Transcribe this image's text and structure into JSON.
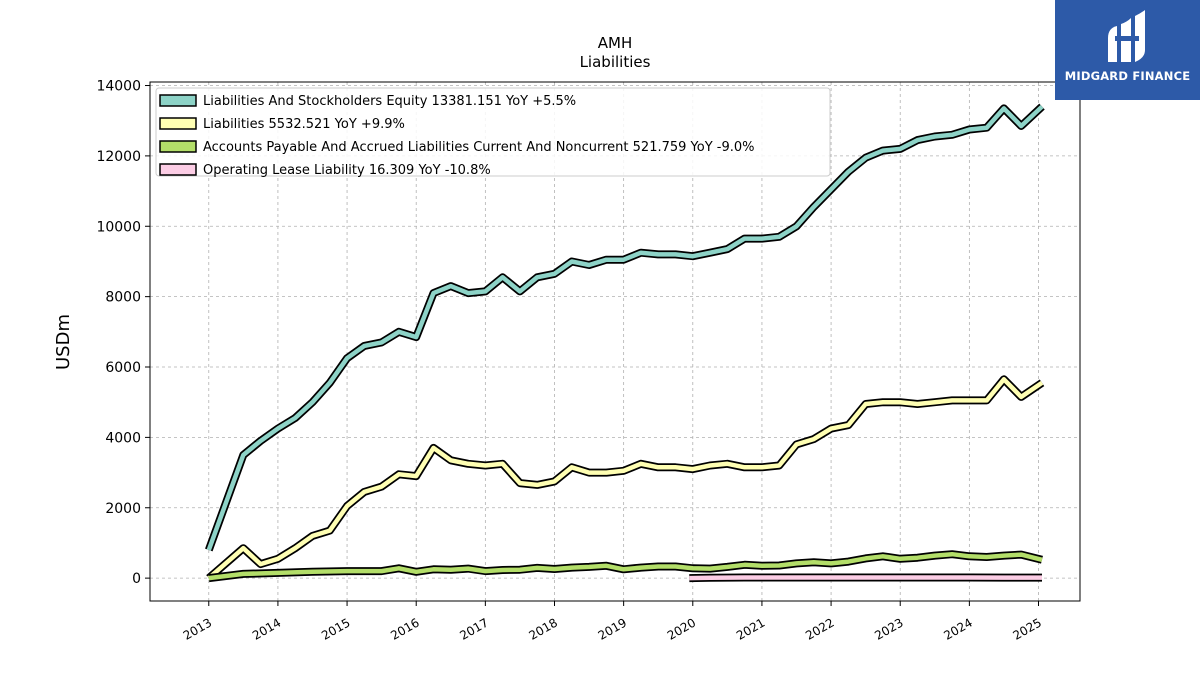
{
  "chart_data": {
    "type": "line",
    "title": "AMH",
    "subtitle": "Liabilities",
    "ylabel": "USDm",
    "xlabel": "",
    "ylim": [
      -650,
      14100
    ],
    "xlim": [
      2012.15,
      2025.6
    ],
    "yticks": [
      0,
      2000,
      4000,
      6000,
      8000,
      10000,
      12000,
      14000
    ],
    "xticks": [
      "2013",
      "2014",
      "2015",
      "2016",
      "2017",
      "2018",
      "2019",
      "2020",
      "2021",
      "2022",
      "2023",
      "2024",
      "2025"
    ],
    "grid": true,
    "legend_position": "top-left",
    "series": [
      {
        "name": "Liabilities And Stockholders Equity",
        "legend": "Liabilities And Stockholders Equity  13381.151 YoY +5.5%",
        "color": "#8dd3c7",
        "points": [
          [
            2013.0,
            800
          ],
          [
            2013.5,
            3500
          ],
          [
            2013.75,
            3900
          ],
          [
            2014.0,
            4250
          ],
          [
            2014.25,
            4550
          ],
          [
            2014.5,
            5000
          ],
          [
            2014.75,
            5550
          ],
          [
            2015.0,
            6250
          ],
          [
            2015.25,
            6600
          ],
          [
            2015.5,
            6700
          ],
          [
            2015.75,
            7000
          ],
          [
            2016.0,
            6850
          ],
          [
            2016.25,
            8100
          ],
          [
            2016.5,
            8300
          ],
          [
            2016.75,
            8100
          ],
          [
            2017.0,
            8150
          ],
          [
            2017.25,
            8550
          ],
          [
            2017.5,
            8150
          ],
          [
            2017.75,
            8550
          ],
          [
            2018.0,
            8650
          ],
          [
            2018.25,
            9000
          ],
          [
            2018.5,
            8900
          ],
          [
            2018.75,
            9050
          ],
          [
            2019.0,
            9050
          ],
          [
            2019.25,
            9250
          ],
          [
            2019.5,
            9200
          ],
          [
            2019.75,
            9200
          ],
          [
            2020.0,
            9150
          ],
          [
            2020.25,
            9250
          ],
          [
            2020.5,
            9350
          ],
          [
            2020.75,
            9650
          ],
          [
            2021.0,
            9650
          ],
          [
            2021.25,
            9700
          ],
          [
            2021.5,
            10000
          ],
          [
            2021.75,
            10550
          ],
          [
            2022.0,
            11050
          ],
          [
            2022.25,
            11550
          ],
          [
            2022.5,
            11950
          ],
          [
            2022.75,
            12150
          ],
          [
            2023.0,
            12200
          ],
          [
            2023.25,
            12450
          ],
          [
            2023.5,
            12550
          ],
          [
            2023.75,
            12600
          ],
          [
            2024.0,
            12750
          ],
          [
            2024.25,
            12800
          ],
          [
            2024.5,
            13350
          ],
          [
            2024.75,
            12850
          ],
          [
            2025.05,
            13400
          ]
        ]
      },
      {
        "name": "Liabilities",
        "legend": "Liabilities  5532.521 YoY +9.9%",
        "color": "#ffffb3",
        "points": [
          [
            2013.0,
            0
          ],
          [
            2013.5,
            850
          ],
          [
            2013.75,
            400
          ],
          [
            2014.0,
            550
          ],
          [
            2014.25,
            850
          ],
          [
            2014.5,
            1200
          ],
          [
            2014.75,
            1350
          ],
          [
            2015.0,
            2050
          ],
          [
            2015.25,
            2450
          ],
          [
            2015.5,
            2600
          ],
          [
            2015.75,
            2950
          ],
          [
            2016.0,
            2900
          ],
          [
            2016.25,
            3700
          ],
          [
            2016.5,
            3350
          ],
          [
            2016.75,
            3250
          ],
          [
            2017.0,
            3200
          ],
          [
            2017.25,
            3250
          ],
          [
            2017.5,
            2700
          ],
          [
            2017.75,
            2650
          ],
          [
            2018.0,
            2750
          ],
          [
            2018.25,
            3150
          ],
          [
            2018.5,
            3000
          ],
          [
            2018.75,
            3000
          ],
          [
            2019.0,
            3050
          ],
          [
            2019.25,
            3250
          ],
          [
            2019.5,
            3150
          ],
          [
            2019.75,
            3150
          ],
          [
            2020.0,
            3100
          ],
          [
            2020.25,
            3200
          ],
          [
            2020.5,
            3250
          ],
          [
            2020.75,
            3150
          ],
          [
            2021.0,
            3150
          ],
          [
            2021.25,
            3200
          ],
          [
            2021.5,
            3800
          ],
          [
            2021.75,
            3950
          ],
          [
            2022.0,
            4250
          ],
          [
            2022.25,
            4350
          ],
          [
            2022.5,
            4950
          ],
          [
            2022.75,
            5000
          ],
          [
            2023.0,
            5000
          ],
          [
            2023.25,
            4950
          ],
          [
            2023.5,
            5000
          ],
          [
            2023.75,
            5050
          ],
          [
            2024.0,
            5050
          ],
          [
            2024.25,
            5050
          ],
          [
            2024.5,
            5650
          ],
          [
            2024.75,
            5150
          ],
          [
            2025.05,
            5550
          ]
        ]
      },
      {
        "name": "Accounts Payable And Accrued Liabilities Current And Noncurrent",
        "legend": "Accounts Payable And Accrued Liabilities Current And Noncurrent  521.759 YoY -9.0%",
        "color": "#b3de69",
        "points": [
          [
            2013.0,
            0
          ],
          [
            2013.5,
            120
          ],
          [
            2014.0,
            150
          ],
          [
            2014.5,
            180
          ],
          [
            2015.0,
            200
          ],
          [
            2015.5,
            200
          ],
          [
            2015.75,
            280
          ],
          [
            2016.0,
            180
          ],
          [
            2016.25,
            250
          ],
          [
            2016.5,
            240
          ],
          [
            2016.75,
            270
          ],
          [
            2017.0,
            200
          ],
          [
            2017.25,
            230
          ],
          [
            2017.5,
            240
          ],
          [
            2017.75,
            290
          ],
          [
            2018.0,
            260
          ],
          [
            2018.25,
            300
          ],
          [
            2018.5,
            320
          ],
          [
            2018.75,
            350
          ],
          [
            2019.0,
            250
          ],
          [
            2019.25,
            300
          ],
          [
            2019.5,
            330
          ],
          [
            2019.75,
            330
          ],
          [
            2020.0,
            280
          ],
          [
            2020.25,
            270
          ],
          [
            2020.5,
            320
          ],
          [
            2020.75,
            380
          ],
          [
            2021.0,
            350
          ],
          [
            2021.25,
            360
          ],
          [
            2021.5,
            420
          ],
          [
            2021.75,
            450
          ],
          [
            2022.0,
            420
          ],
          [
            2022.25,
            470
          ],
          [
            2022.5,
            560
          ],
          [
            2022.75,
            620
          ],
          [
            2023.0,
            550
          ],
          [
            2023.25,
            580
          ],
          [
            2023.5,
            640
          ],
          [
            2023.75,
            680
          ],
          [
            2024.0,
            620
          ],
          [
            2024.25,
            600
          ],
          [
            2024.5,
            640
          ],
          [
            2024.75,
            670
          ],
          [
            2025.05,
            520
          ]
        ]
      },
      {
        "name": "Operating Lease Liability",
        "legend": "Operating Lease Liability  16.309 YoY -10.8%",
        "color": "#fccde5",
        "points": [
          [
            2019.95,
            0
          ],
          [
            2020.25,
            10
          ],
          [
            2020.5,
            15
          ],
          [
            2020.75,
            18
          ],
          [
            2021.0,
            18
          ],
          [
            2021.5,
            18
          ],
          [
            2022.0,
            18
          ],
          [
            2022.5,
            18
          ],
          [
            2023.0,
            18
          ],
          [
            2023.5,
            17
          ],
          [
            2024.0,
            17
          ],
          [
            2024.5,
            16
          ],
          [
            2025.05,
            16
          ]
        ]
      }
    ]
  },
  "logo": {
    "text": "MIDGARD FINANCE",
    "background": "#2d5aa8"
  }
}
